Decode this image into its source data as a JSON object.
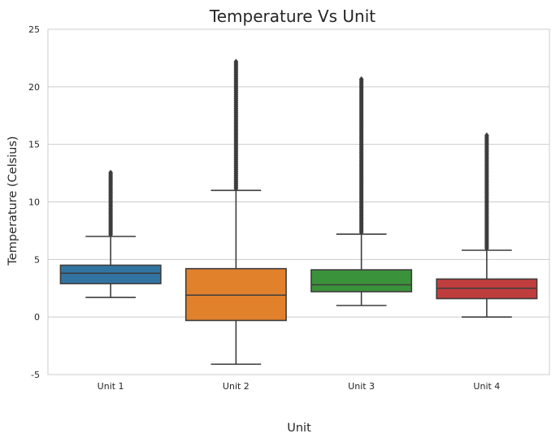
{
  "chart_data": {
    "type": "box",
    "title": "Temperature Vs Unit",
    "xlabel": "Unit",
    "ylabel": "Temperature (Celsius)",
    "ylim": [
      -5,
      25
    ],
    "yticks": [
      -5,
      0,
      5,
      10,
      15,
      20,
      25
    ],
    "grid": "horizontal",
    "categories": [
      "Unit 1",
      "Unit 2",
      "Unit 3",
      "Unit 4"
    ],
    "colors": [
      "#3274a1",
      "#e1812c",
      "#3a923a",
      "#c03d3e"
    ],
    "boxes": [
      {
        "category": "Unit 1",
        "whisker_low": 1.7,
        "q1": 2.9,
        "median": 3.8,
        "q3": 4.5,
        "whisker_high": 7.0,
        "outliers_range": [
          7.0,
          12.6
        ]
      },
      {
        "category": "Unit 2",
        "whisker_low": -4.1,
        "q1": -0.3,
        "median": 1.9,
        "q3": 4.2,
        "whisker_high": 11.0,
        "outliers_range": [
          11.0,
          22.3
        ]
      },
      {
        "category": "Unit 3",
        "whisker_low": 1.0,
        "q1": 2.2,
        "median": 2.8,
        "q3": 4.1,
        "whisker_high": 7.2,
        "outliers_range": [
          7.2,
          20.7
        ]
      },
      {
        "category": "Unit 4",
        "whisker_low": 0.0,
        "q1": 1.6,
        "median": 2.5,
        "q3": 3.3,
        "whisker_high": 5.8,
        "outliers_range": [
          5.8,
          15.9
        ]
      }
    ]
  }
}
